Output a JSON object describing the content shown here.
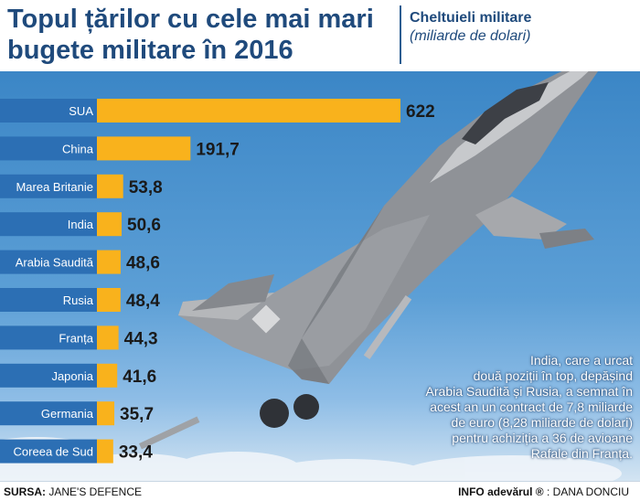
{
  "header": {
    "title_line1": "Topul țărilor cu cele mai mari",
    "title_line2": "bugete militare în 2016",
    "subtitle_line1": "Cheltuieli militare",
    "subtitle_line2": "(miliarde de dolari)"
  },
  "chart_data": {
    "type": "bar",
    "orientation": "horizontal",
    "title": "Topul țărilor cu cele mai mari bugete militare în 2016",
    "subtitle": "Cheltuieli militare (miliarde de dolari)",
    "categories": [
      "SUA",
      "China",
      "Marea Britanie",
      "India",
      "Arabia Saudită",
      "Rusia",
      "Franța",
      "Japonia",
      "Germania",
      "Coreea de Sud"
    ],
    "values": [
      622,
      191.7,
      53.8,
      50.6,
      48.6,
      48.4,
      44.3,
      41.6,
      35.7,
      33.4
    ],
    "value_labels": [
      "622",
      "191,7",
      "53,8",
      "50,6",
      "48,6",
      "48,4",
      "44,3",
      "41,6",
      "35,7",
      "33,4"
    ],
    "bar_color": "#f9b21c",
    "row_label_color": "#2c6fb4",
    "xlim": [
      0,
      622
    ],
    "grid": false
  },
  "note": {
    "lines": [
      "India, care a urcat",
      "două poziții în top, depășind",
      "Arabia Saudită și Rusia, a semnat în",
      "acest an un contract de 7,8 miliarde",
      "de  euro (8,28 miliarde de dolari)",
      "pentru achiziția a 36 de avioane",
      "Rafale din Franța."
    ]
  },
  "footer": {
    "source_label": "SURSA:",
    "source_text": " JANE'S DEFENCE",
    "info_label": "INFO adevărul ®",
    "info_sep": " :  ",
    "author": "DANA DONCIU"
  },
  "colors": {
    "title": "#1f4a7c",
    "sky_top": "#3b86c6",
    "sky_bottom": "#d3e4f2"
  }
}
